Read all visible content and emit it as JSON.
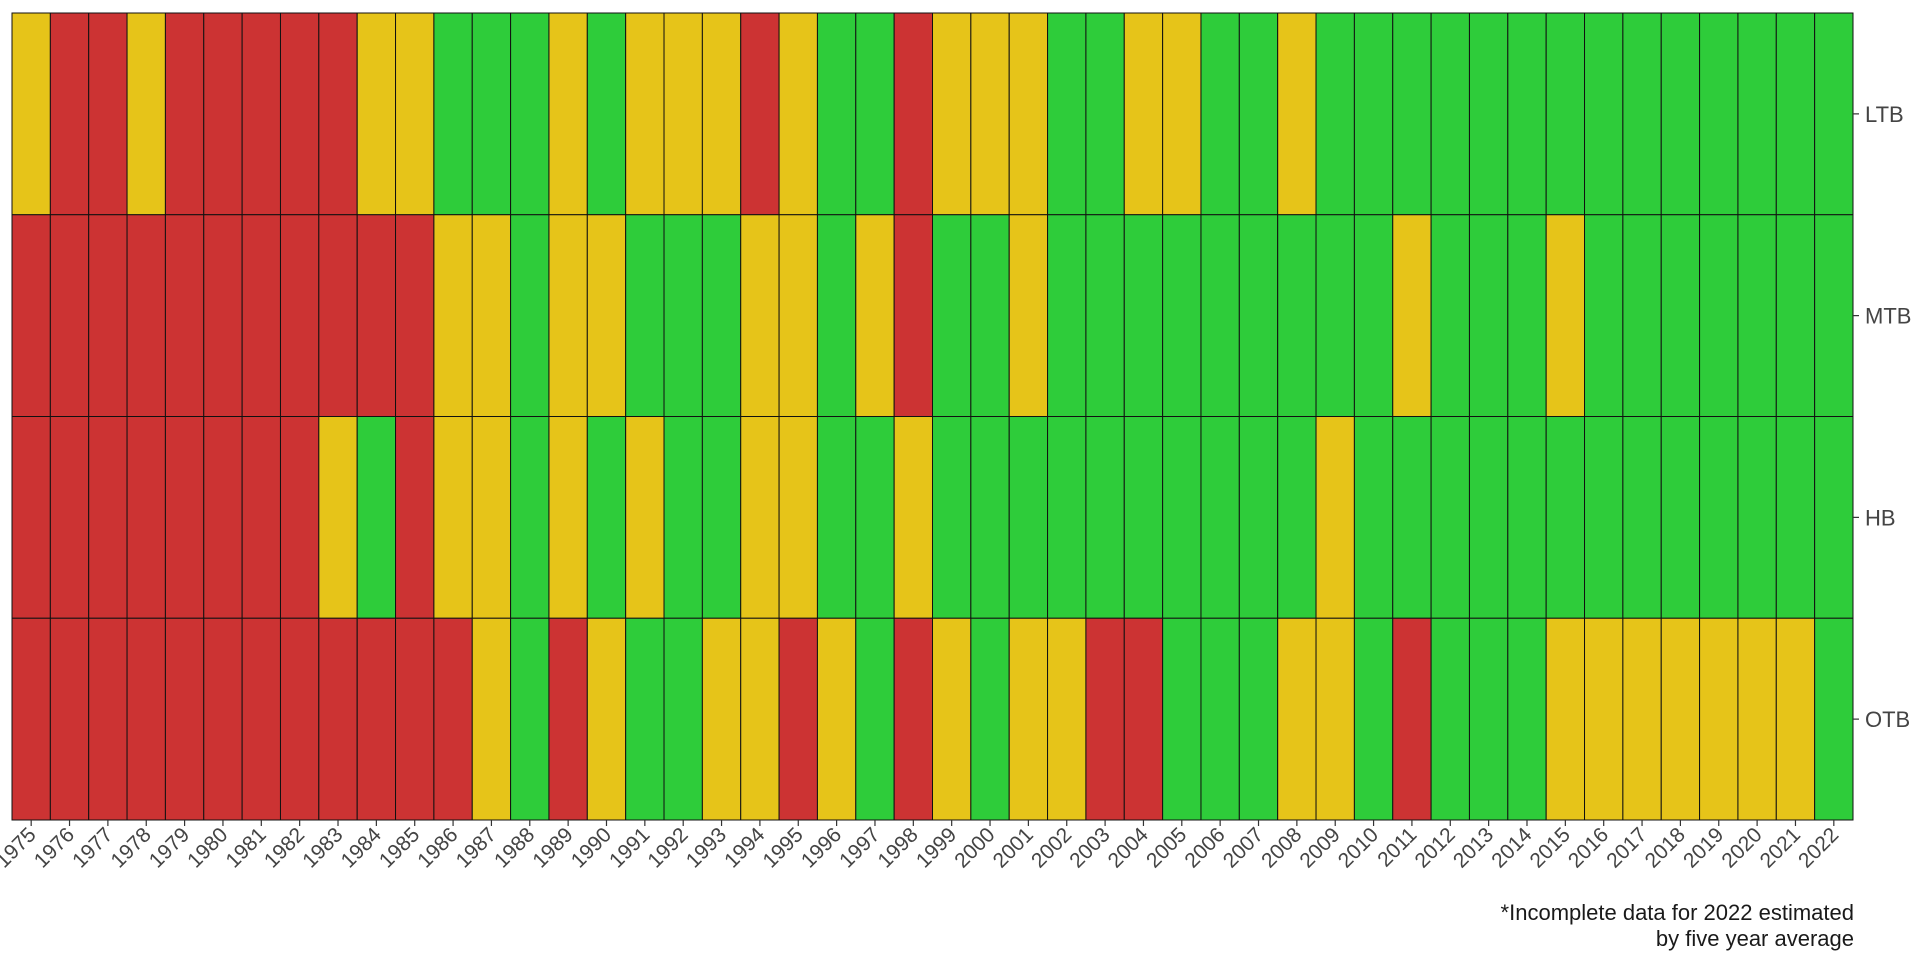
{
  "chart_data": {
    "type": "heatmap",
    "title": "",
    "xlabel": "",
    "ylabel": "",
    "x": [
      "1975",
      "1976",
      "1977",
      "1978",
      "1979",
      "1980",
      "1981",
      "1982",
      "1983",
      "1984",
      "1985",
      "1986",
      "1987",
      "1988",
      "1989",
      "1990",
      "1991",
      "1992",
      "1993",
      "1994",
      "1995",
      "1996",
      "1997",
      "1998",
      "1999",
      "2000",
      "2001",
      "2002",
      "2003",
      "2004",
      "2005",
      "2006",
      "2007",
      "2008",
      "2009",
      "2010",
      "2011",
      "2012",
      "2013",
      "2014",
      "2015",
      "2016",
      "2017",
      "2018",
      "2019",
      "2020",
      "2021",
      "2022"
    ],
    "y": [
      "LTB",
      "MTB",
      "HB",
      "OTB"
    ],
    "color_map": {
      "R": "#cc3333",
      "Y": "#e6c419",
      "G": "#2ecc3a"
    },
    "values": {
      "LTB": "YRRYRRRRRYYGGGYGYYYRYGGRYYYGGYYGGYGGGGGGGGGGGGGG",
      "MTB": "RRRRRRRRRRRYYGYYGGGYYGYRGGYGGGGGGGGGYGGGYGGGGGGG",
      "HB": "RRRRRRRRYGRYYGYGYGGYYGGYGGGGGGGGGGYGGGGGGGGGGGGG",
      "OTB": "RRRRRRRRRRRRYGRYGGYYRYGRYGYYRRGGGYYGRGGGYYYYYYYG"
    },
    "legend": ""
  },
  "footnote": {
    "line1": "*Incomplete data for 2022 estimated",
    "line2": "by five year average"
  }
}
